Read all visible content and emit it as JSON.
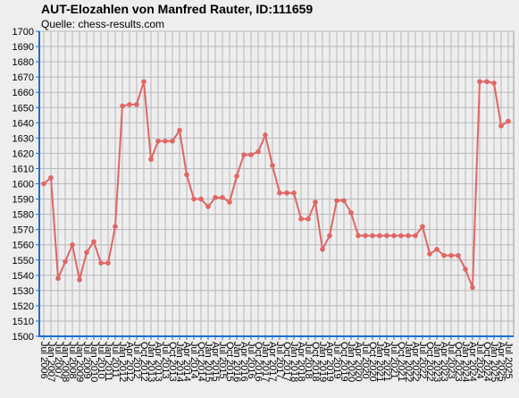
{
  "chart_data": {
    "type": "line",
    "title": "AUT-Elozahlen von Manfred Rauter, ID:111659",
    "subtitle": "Quelle: chess-results.com",
    "categories": [
      "Jul 2006",
      "Jan 2007",
      "Jul 2007",
      "Jan 2008",
      "Jul 2008",
      "Jan 2009",
      "Jul 2009",
      "Jan 2010",
      "Jul 2010",
      "Jan 2011",
      "Jul 2011",
      "Jan 2012",
      "Apr 2012",
      "Jul 2012",
      "Oct 2012",
      "Jan 2013",
      "Apr 2013",
      "Jul 2013",
      "Oct 2013",
      "Jan 2014",
      "Apr 2014",
      "Jul 2014",
      "Oct 2014",
      "Jan 2015",
      "Apr 2015",
      "Jul 2015",
      "Oct 2015",
      "Jan 2016",
      "Apr 2016",
      "Jul 2016",
      "Oct 2016",
      "Jan 2017",
      "Apr 2017",
      "Jul 2017",
      "Oct 2017",
      "Jan 2018",
      "Apr 2018",
      "Jul 2018",
      "Oct 2018",
      "Jan 2019",
      "Apr 2019",
      "Jul 2019",
      "Oct 2019",
      "Jan 2020",
      "Apr 2020",
      "Jul 2020",
      "Oct 2020",
      "Jan 2021",
      "Apr 2021",
      "Jul 2021",
      "Oct 2021",
      "Jan 2022",
      "Apr 2022",
      "Jul 2022",
      "Oct 2022",
      "Jan 2023",
      "Apr 2023",
      "Jul 2023",
      "Oct 2023",
      "Jan 2024",
      "Apr 2024",
      "Jul 2024",
      "Oct 2024",
      "Jan 2025",
      "Apr 2025",
      "Jul 2025"
    ],
    "values": [
      1600,
      1604,
      1538,
      1549,
      1560,
      1537,
      1555,
      1562,
      1548,
      1548,
      1572,
      1651,
      1652,
      1652,
      1667,
      1616,
      1628,
      1628,
      1628,
      1635,
      1606,
      1590,
      1590,
      1585,
      1591,
      1591,
      1588,
      1605,
      1619,
      1619,
      1621,
      1632,
      1612,
      1594,
      1594,
      1594,
      1577,
      1577,
      1588,
      1557,
      1566,
      1589,
      1589,
      1581,
      1566,
      1566,
      1566,
      1566,
      1566,
      1566,
      1566,
      1566,
      1566,
      1572,
      1554,
      1557,
      1553,
      1553,
      1553,
      1544,
      1532,
      1667,
      1667,
      1666,
      1638,
      1641
    ],
    "color": "#e06666",
    "ylim": [
      1500,
      1700
    ],
    "yticks": [
      1500,
      1510,
      1520,
      1530,
      1540,
      1550,
      1560,
      1570,
      1580,
      1590,
      1600,
      1610,
      1620,
      1630,
      1640,
      1650,
      1660,
      1670,
      1680,
      1690,
      1700
    ],
    "grid": true
  }
}
